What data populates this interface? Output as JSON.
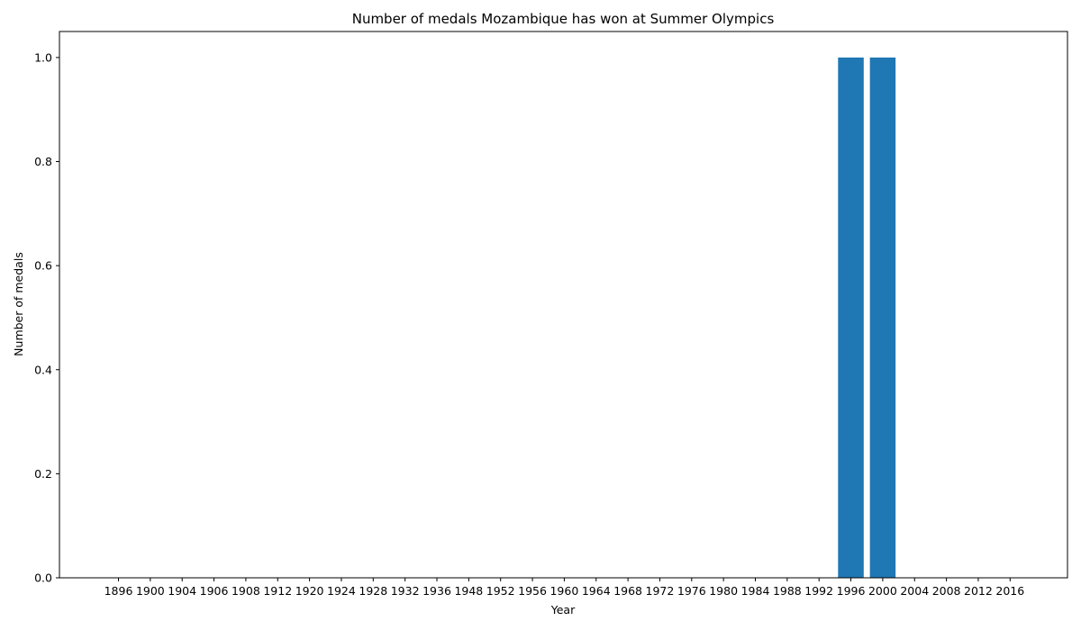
{
  "chart_data": {
    "type": "bar",
    "title": "Number of medals Mozambique has won at Summer Olympics",
    "xlabel": "Year",
    "ylabel": "Number of medals",
    "categories": [
      "1896",
      "1900",
      "1904",
      "1906",
      "1908",
      "1912",
      "1920",
      "1924",
      "1928",
      "1932",
      "1936",
      "1948",
      "1952",
      "1956",
      "1960",
      "1964",
      "1968",
      "1972",
      "1976",
      "1980",
      "1984",
      "1988",
      "1992",
      "1996",
      "2000",
      "2004",
      "2008",
      "2012",
      "2016"
    ],
    "values": [
      0,
      0,
      0,
      0,
      0,
      0,
      0,
      0,
      0,
      0,
      0,
      0,
      0,
      0,
      0,
      0,
      0,
      0,
      0,
      0,
      0,
      0,
      0,
      1,
      1,
      0,
      0,
      0,
      0
    ],
    "ylim": [
      0,
      1.05
    ],
    "yticks": [
      "0.0",
      "0.2",
      "0.4",
      "0.6",
      "0.8",
      "1.0"
    ],
    "bar_color": "#1f77b4",
    "grid": false,
    "legend": "none"
  }
}
